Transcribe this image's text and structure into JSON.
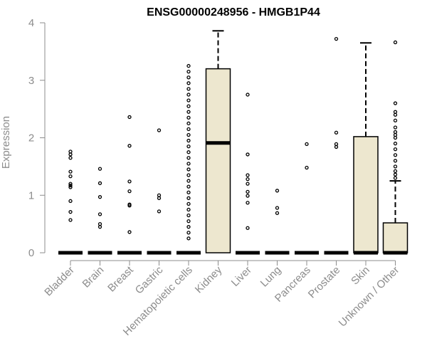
{
  "chart_data": {
    "type": "box",
    "title": "ENSG00000248956 - HMGB1P44",
    "xlabel": "",
    "ylabel": "Expression",
    "ylim": [
      0,
      4
    ],
    "yticks": [
      0,
      1,
      2,
      3,
      4
    ],
    "categories": [
      "Bladder",
      "Brain",
      "Breast",
      "Gastric",
      "Hematopoietic cells",
      "Kidney",
      "Liver",
      "Lung",
      "Pancreas",
      "Prostate",
      "Skin",
      "Unknown / Other"
    ],
    "boxes": [
      {
        "category": "Bladder",
        "q1": 0,
        "median": 0,
        "q3": 0,
        "whisker_low": 0,
        "whisker_high": 0,
        "outliers": [
          0.57,
          0.71,
          0.9,
          1.14,
          1.17,
          1.2,
          1.33,
          1.41,
          1.65,
          1.71,
          1.76
        ]
      },
      {
        "category": "Brain",
        "q1": 0,
        "median": 0,
        "q3": 0,
        "whisker_low": 0,
        "whisker_high": 0,
        "outliers": [
          0.45,
          0.5,
          0.67,
          0.97,
          1.21,
          1.46
        ]
      },
      {
        "category": "Breast",
        "q1": 0,
        "median": 0,
        "q3": 0,
        "whisker_low": 0,
        "whisker_high": 0,
        "outliers": [
          0.36,
          0.82,
          0.84,
          1.07,
          1.24,
          1.86,
          2.36
        ]
      },
      {
        "category": "Gastric",
        "q1": 0,
        "median": 0,
        "q3": 0,
        "whisker_low": 0,
        "whisker_high": 0,
        "outliers": [
          0.72,
          0.95,
          1.0,
          2.13
        ]
      },
      {
        "category": "Hematopoietic cells",
        "q1": 0,
        "median": 0,
        "q3": 0,
        "whisker_low": 0,
        "whisker_high": 0,
        "outliers": [
          0.25,
          0.35,
          0.45,
          0.55,
          0.65,
          0.75,
          0.85,
          0.95,
          1.05,
          1.15,
          1.25,
          1.35,
          1.45,
          1.55,
          1.65,
          1.75,
          1.85,
          1.95,
          2.05,
          2.15,
          2.25,
          2.35,
          2.45,
          2.55,
          2.65,
          2.75,
          2.85,
          2.95,
          3.05,
          3.15,
          3.25
        ]
      },
      {
        "category": "Kidney",
        "q1": 0,
        "median": 1.91,
        "q3": 3.2,
        "whisker_low": 0,
        "whisker_high": 3.86,
        "outliers": []
      },
      {
        "category": "Liver",
        "q1": 0,
        "median": 0,
        "q3": 0,
        "whisker_low": 0,
        "whisker_high": 0,
        "outliers": [
          0.43,
          0.87,
          0.99,
          1.06,
          1.2,
          1.28,
          1.35,
          1.71,
          2.75
        ]
      },
      {
        "category": "Lung",
        "q1": 0,
        "median": 0,
        "q3": 0,
        "whisker_low": 0,
        "whisker_high": 0,
        "outliers": [
          0.69,
          0.78,
          1.08
        ]
      },
      {
        "category": "Pancreas",
        "q1": 0,
        "median": 0,
        "q3": 0,
        "whisker_low": 0,
        "whisker_high": 0,
        "outliers": [
          1.48,
          1.89
        ]
      },
      {
        "category": "Prostate",
        "q1": 0,
        "median": 0,
        "q3": 0,
        "whisker_low": 0,
        "whisker_high": 0,
        "outliers": [
          1.84,
          1.89,
          2.09,
          3.72
        ]
      },
      {
        "category": "Skin",
        "q1": 0,
        "median": 0,
        "q3": 2.02,
        "whisker_low": 0,
        "whisker_high": 3.65,
        "outliers": []
      },
      {
        "category": "Unknown / Other",
        "q1": 0,
        "median": 0,
        "q3": 0.52,
        "whisker_low": 0,
        "whisker_high": 1.25,
        "outliers": [
          1.3,
          1.36,
          1.42,
          1.5,
          1.6,
          1.7,
          1.8,
          1.9,
          2.0,
          2.05,
          2.1,
          2.18,
          2.3,
          2.4,
          2.45,
          2.6,
          3.66
        ]
      }
    ],
    "colors": {
      "box_fill": "#ede7cf",
      "box_stroke": "#000000",
      "axis": "#8c8c8c"
    },
    "grid": false,
    "legend": "none"
  }
}
